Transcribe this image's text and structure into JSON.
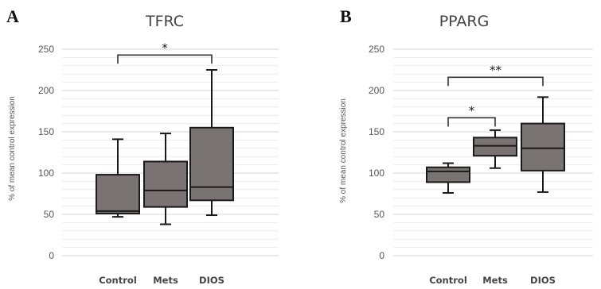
{
  "chart_data": [
    {
      "type": "boxplot",
      "panel": "A",
      "title": "TFRC",
      "ylabel": "% of mean control expression",
      "ylim": [
        0,
        250
      ],
      "yticks": [
        0,
        50,
        100,
        150,
        200,
        250
      ],
      "categories": [
        "Control",
        "Mets",
        "DIOS"
      ],
      "boxes": [
        {
          "category": "Control",
          "min": 47,
          "q1": 51,
          "median": 54,
          "q3": 98,
          "max": 141
        },
        {
          "category": "Mets",
          "min": 38,
          "q1": 59,
          "median": 79,
          "q3": 114,
          "max": 148
        },
        {
          "category": "DIOS",
          "min": 49,
          "q1": 67,
          "median": 83,
          "q3": 155,
          "max": 225
        }
      ],
      "significance": [
        {
          "from": "Control",
          "to": "DIOS",
          "label": "*",
          "y": 243
        }
      ],
      "fill_color": "#7a7373",
      "grid": true
    },
    {
      "type": "boxplot",
      "panel": "B",
      "title": "PPARG",
      "ylabel": "% of mean control expression",
      "ylim": [
        0,
        250
      ],
      "yticks": [
        0,
        50,
        100,
        150,
        200,
        250
      ],
      "categories": [
        "Control",
        "Mets",
        "DIOS"
      ],
      "boxes": [
        {
          "category": "Control",
          "min": 76,
          "q1": 89,
          "median": 102,
          "q3": 107,
          "max": 112
        },
        {
          "category": "Mets",
          "min": 106,
          "q1": 121,
          "median": 133,
          "q3": 143,
          "max": 152
        },
        {
          "category": "DIOS",
          "min": 77,
          "q1": 103,
          "median": 130,
          "q3": 160,
          "max": 192
        }
      ],
      "significance": [
        {
          "from": "Control",
          "to": "DIOS",
          "label": "**",
          "y": 216
        },
        {
          "from": "Control",
          "to": "Mets",
          "label": "*",
          "y": 167
        }
      ],
      "fill_color": "#7a7373",
      "grid": true
    }
  ]
}
